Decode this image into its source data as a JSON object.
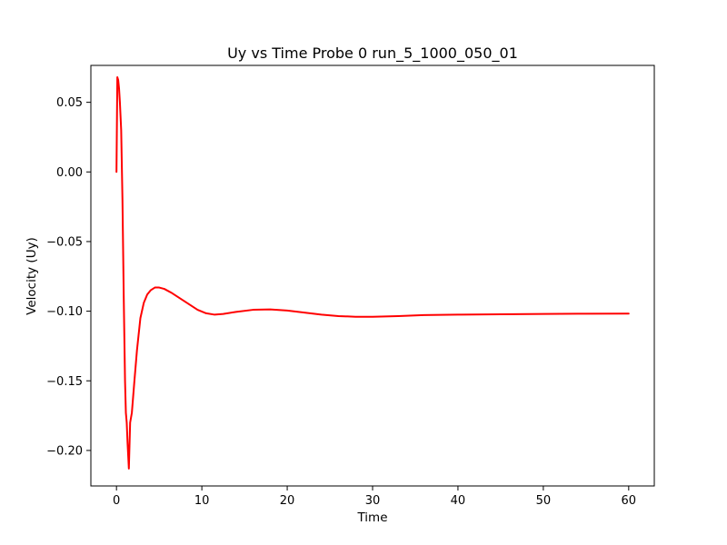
{
  "chart_data": {
    "type": "line",
    "title": "Uy vs Time Probe 0 run_5_1000_050_01",
    "xlabel": "Time",
    "ylabel": "Velocity (Uy)",
    "xlim": [
      -3,
      63
    ],
    "ylim": [
      -0.2255,
      0.0765
    ],
    "xticks": [
      0,
      10,
      20,
      30,
      40,
      50,
      60
    ],
    "xtick_labels": [
      "0",
      "10",
      "20",
      "30",
      "40",
      "50",
      "60"
    ],
    "yticks": [
      0.05,
      0.0,
      -0.05,
      -0.1,
      -0.15,
      -0.2
    ],
    "ytick_labels": [
      "0.05",
      "0.00",
      "−0.05",
      "−0.10",
      "−0.15",
      "−0.20"
    ],
    "grid": false,
    "series": [
      {
        "color": "#ff0000",
        "x": [
          0,
          0.1,
          0.2,
          0.3,
          0.4,
          0.55,
          0.7,
          0.85,
          1.0,
          1.1,
          1.2,
          1.3,
          1.45,
          1.6,
          1.8,
          2.1,
          2.4,
          2.8,
          3.2,
          3.6,
          4.0,
          4.5,
          5.0,
          5.6,
          6.5,
          7.5,
          8.5,
          9.5,
          10.5,
          11.5,
          12.5,
          14,
          16,
          18,
          20,
          22,
          24,
          26,
          28,
          30,
          33,
          36,
          40,
          45,
          50,
          55,
          60
        ],
        "y": [
          0.0,
          0.068,
          0.066,
          0.06,
          0.05,
          0.03,
          -0.02,
          -0.09,
          -0.15,
          -0.173,
          -0.18,
          -0.195,
          -0.213,
          -0.18,
          -0.173,
          -0.15,
          -0.128,
          -0.105,
          -0.094,
          -0.088,
          -0.085,
          -0.083,
          -0.083,
          -0.084,
          -0.087,
          -0.091,
          -0.095,
          -0.099,
          -0.1015,
          -0.1025,
          -0.102,
          -0.1005,
          -0.099,
          -0.0987,
          -0.0995,
          -0.101,
          -0.1025,
          -0.1035,
          -0.104,
          -0.104,
          -0.1035,
          -0.1028,
          -0.1025,
          -0.1022,
          -0.102,
          -0.1018,
          -0.1017
        ]
      }
    ]
  }
}
